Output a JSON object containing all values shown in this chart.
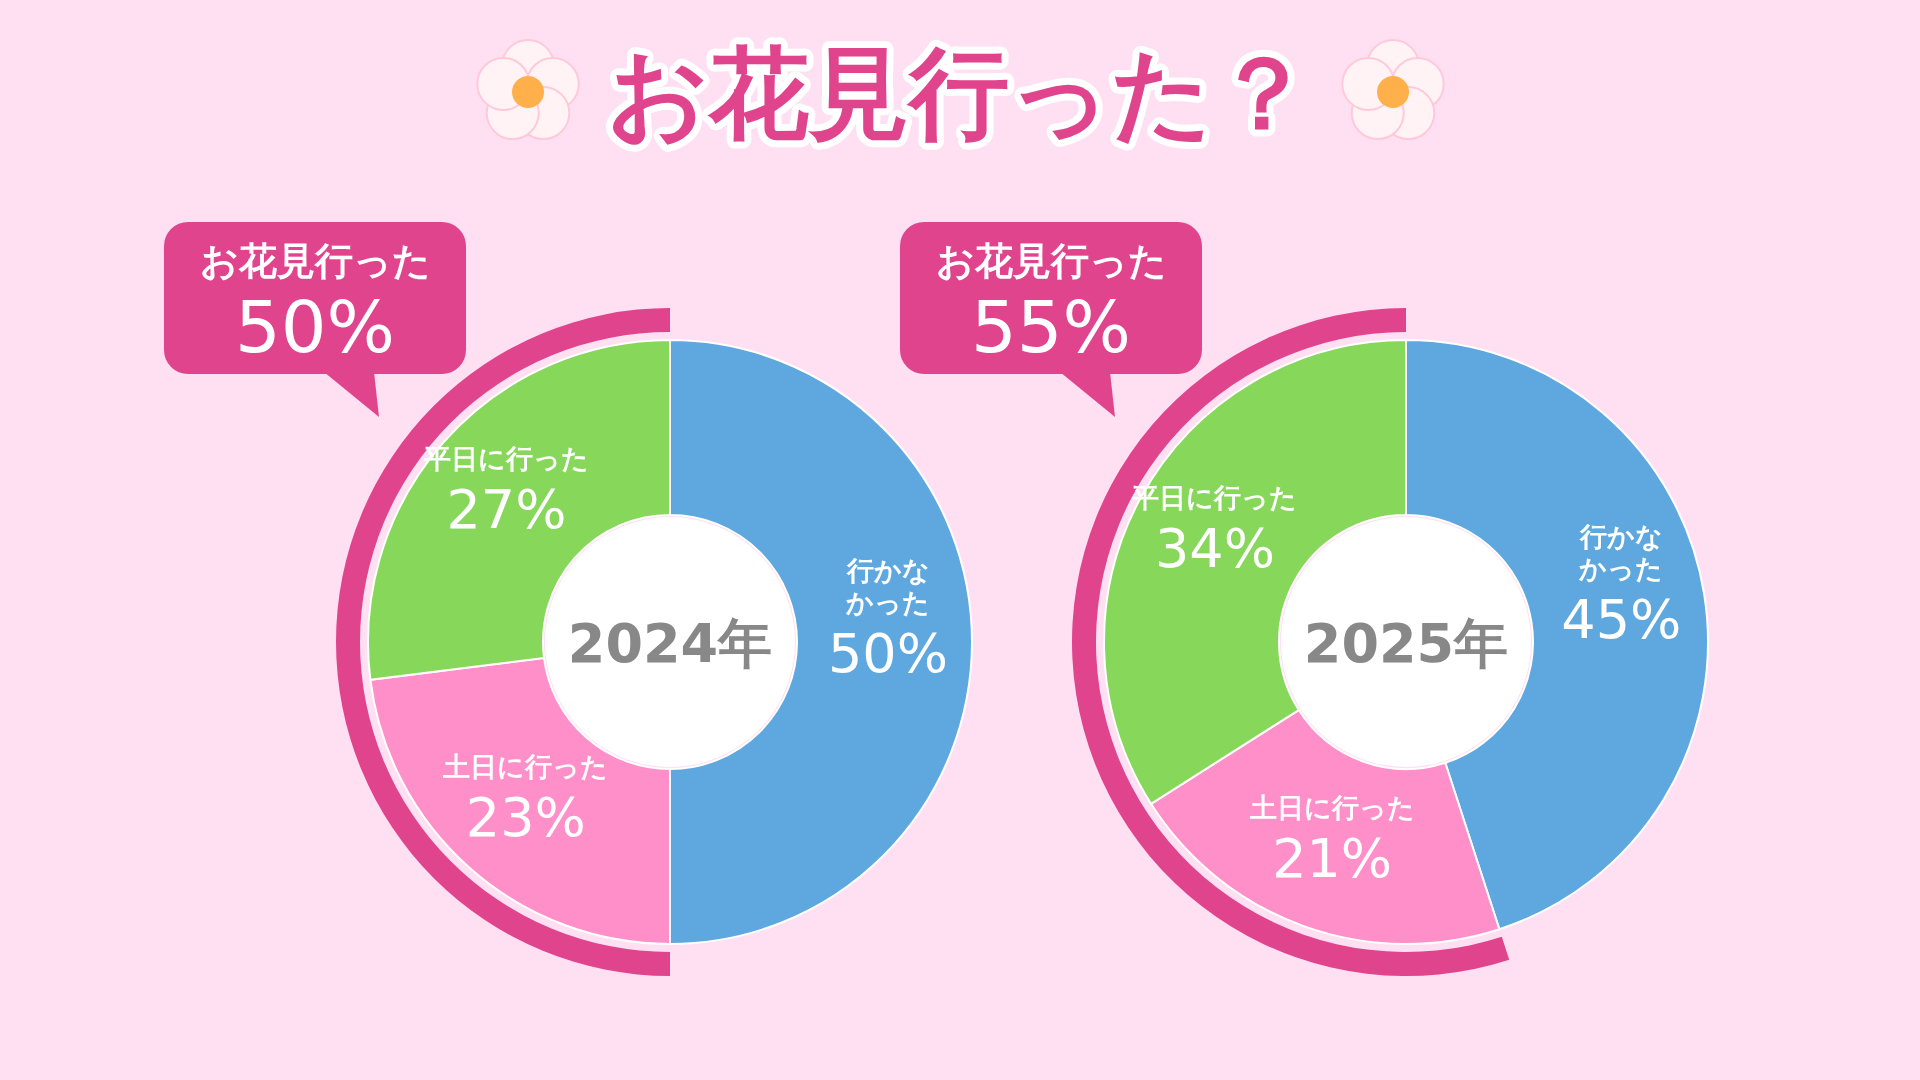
{
  "chart_data": [
    {
      "type": "donut",
      "title": "2024年",
      "categories": [
        "行かなかった",
        "土日に行った",
        "平日に行った"
      ],
      "values": [
        50,
        23,
        27
      ],
      "colors": [
        "#5fa8df",
        "#ff8fc8",
        "#87d75a"
      ],
      "value_labels": [
        "50%",
        "23%",
        "27%"
      ],
      "annotations": [
        "お花見行った？",
        "お花見行った",
        "50%"
      ]
    },
    {
      "type": "donut",
      "title": "2025年",
      "categories": [
        "行かなかった",
        "土日に行った",
        "平日に行った"
      ],
      "values": [
        45,
        21,
        34
      ],
      "colors": [
        "#5fa8df",
        "#ff8fc8",
        "#87d75a"
      ],
      "value_labels": [
        "45%",
        "21%",
        "34%"
      ],
      "annotations": [
        "お花見行った",
        "55%"
      ]
    }
  ]
}
